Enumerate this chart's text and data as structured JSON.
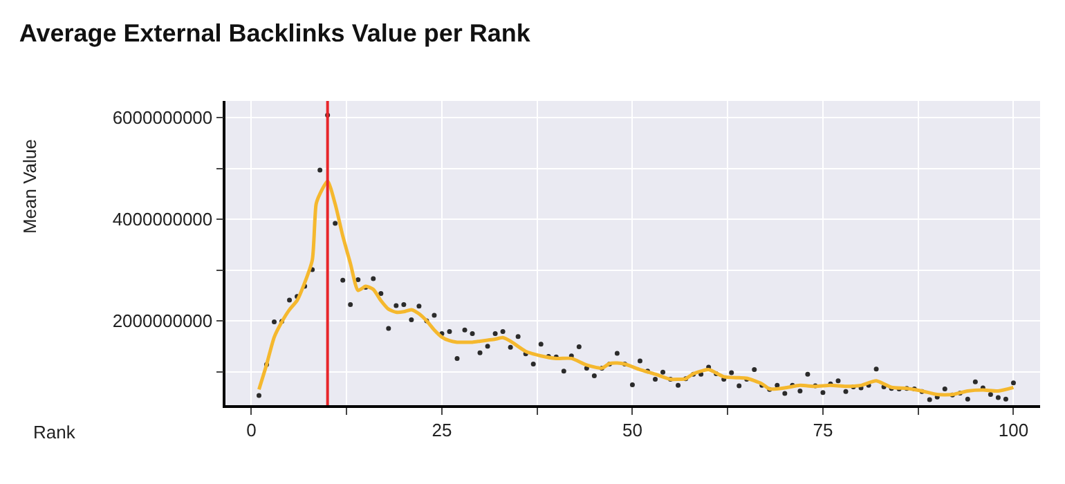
{
  "chart_data": {
    "type": "scatter",
    "title": "Average External Backlinks Value per Rank",
    "xlabel": "Rank",
    "ylabel": "Mean Value",
    "x": [
      1,
      2,
      3,
      4,
      5,
      6,
      7,
      8,
      9,
      10,
      11,
      12,
      13,
      14,
      15,
      16,
      17,
      18,
      19,
      20,
      21,
      22,
      23,
      24,
      25,
      26,
      27,
      28,
      29,
      30,
      31,
      32,
      33,
      34,
      35,
      36,
      37,
      38,
      39,
      40,
      41,
      42,
      43,
      44,
      45,
      46,
      47,
      48,
      49,
      50,
      51,
      52,
      53,
      54,
      55,
      56,
      57,
      58,
      59,
      60,
      61,
      62,
      63,
      64,
      65,
      66,
      67,
      68,
      69,
      70,
      71,
      72,
      73,
      74,
      75,
      76,
      77,
      78,
      79,
      80,
      81,
      82,
      83,
      84,
      85,
      86,
      87,
      88,
      89,
      90,
      91,
      92,
      93,
      94,
      95,
      96,
      97,
      98,
      99,
      100
    ],
    "series": [
      {
        "color": "#2b2b2b",
        "values": [
          530000000.0,
          1140000000.0,
          1980000000.0,
          1990000000.0,
          2410000000.0,
          2480000000.0,
          2680000000.0,
          3010000000.0,
          4970000000.0,
          6050000000.0,
          3920000000.0,
          2800000000.0,
          2320000000.0,
          2810000000.0,
          2660000000.0,
          2830000000.0,
          2540000000.0,
          1850000000.0,
          2300000000.0,
          2320000000.0,
          2020000000.0,
          2290000000.0,
          2000000000.0,
          2110000000.0,
          1750000000.0,
          1790000000.0,
          1260000000.0,
          1820000000.0,
          1750000000.0,
          1370000000.0,
          1500000000.0,
          1750000000.0,
          1790000000.0,
          1480000000.0,
          1690000000.0,
          1350000000.0,
          1150000000.0,
          1540000000.0,
          1300000000.0,
          1290000000.0,
          1010000000.0,
          1310000000.0,
          1490000000.0,
          1070000000.0,
          920000000.0,
          1070000000.0,
          1150000000.0,
          1360000000.0,
          1150000000.0,
          740000000.0,
          1210000000.0,
          1010000000.0,
          850000000.0,
          990000000.0,
          850000000.0,
          730000000.0,
          860000000.0,
          950000000.0,
          950000000.0,
          1090000000.0,
          960000000.0,
          850000000.0,
          980000000.0,
          720000000.0,
          850000000.0,
          1040000000.0,
          730000000.0,
          650000000.0,
          730000000.0,
          570000000.0,
          730000000.0,
          620000000.0,
          950000000.0,
          720000000.0,
          590000000.0,
          760000000.0,
          820000000.0,
          610000000.0,
          700000000.0,
          680000000.0,
          730000000.0,
          1050000000.0,
          700000000.0,
          670000000.0,
          660000000.0,
          670000000.0,
          660000000.0,
          610000000.0,
          450000000.0,
          500000000.0,
          660000000.0,
          540000000.0,
          580000000.0,
          460000000.0,
          800000000.0,
          680000000.0,
          550000000.0,
          490000000.0,
          460000000.0,
          780000000.0
        ]
      },
      {
        "type": "line",
        "line_style": "solid",
        "color": "#f5b82e",
        "x": [
          1,
          2,
          3,
          4,
          5,
          6,
          7,
          8,
          8.5,
          9,
          10,
          11,
          12,
          13,
          14,
          15,
          16,
          17,
          18,
          19,
          20,
          21,
          22,
          23,
          24,
          25,
          26,
          27,
          28,
          29,
          30,
          31,
          32,
          33,
          34,
          36,
          38,
          40,
          42,
          44,
          46,
          47,
          48,
          49,
          51,
          53,
          55,
          56,
          57,
          58,
          60,
          62,
          64,
          65,
          67,
          68,
          70,
          72,
          74,
          76,
          78,
          80,
          82,
          84,
          86,
          88,
          90,
          92,
          94,
          96,
          98,
          100
        ],
        "values": [
          650000000.0,
          1140000000.0,
          1680000000.0,
          1980000000.0,
          2220000000.0,
          2400000000.0,
          2750000000.0,
          3200000000.0,
          4300000000.0,
          4500000000.0,
          4750000000.0,
          4300000000.0,
          3670000000.0,
          3130000000.0,
          2600000000.0,
          2680000000.0,
          2620000000.0,
          2400000000.0,
          2230000000.0,
          2170000000.0,
          2180000000.0,
          2220000000.0,
          2140000000.0,
          2000000000.0,
          1820000000.0,
          1680000000.0,
          1610000000.0,
          1580000000.0,
          1580000000.0,
          1580000000.0,
          1600000000.0,
          1620000000.0,
          1640000000.0,
          1670000000.0,
          1600000000.0,
          1400000000.0,
          1310000000.0,
          1260000000.0,
          1260000000.0,
          1130000000.0,
          1070000000.0,
          1160000000.0,
          1170000000.0,
          1150000000.0,
          1040000000.0,
          950000000.0,
          850000000.0,
          850000000.0,
          860000000.0,
          960000000.0,
          1040000000.0,
          900000000.0,
          880000000.0,
          870000000.0,
          760000000.0,
          660000000.0,
          680000000.0,
          730000000.0,
          710000000.0,
          730000000.0,
          710000000.0,
          730000000.0,
          820000000.0,
          690000000.0,
          670000000.0,
          620000000.0,
          550000000.0,
          550000000.0,
          620000000.0,
          640000000.0,
          620000000.0,
          690000000.0
        ]
      }
    ],
    "ref_lines": [
      {
        "axis": "x",
        "value": 10,
        "color": "#e8262b",
        "line_style": "solid"
      }
    ],
    "xlim": [
      -3.4,
      103.5
    ],
    "ylim": [
      340000000.0,
      6330000000.0
    ],
    "xticks": [
      0,
      {
        "value": 12.5,
        "label": null
      },
      25,
      {
        "value": 37.5,
        "label": null
      },
      50,
      {
        "value": 62.5,
        "label": null
      },
      75,
      {
        "value": 87.5,
        "label": null
      },
      100
    ],
    "yticks": [
      {
        "value": 1000000000.0,
        "label": null
      },
      {
        "value": 2000000000.0,
        "label": "2000000000"
      },
      {
        "value": 3000000000.0,
        "label": null
      },
      {
        "value": 4000000000.0,
        "label": "4000000000"
      },
      {
        "value": 5000000000.0,
        "label": null
      },
      {
        "value": 6000000000.0,
        "label": "6000000000"
      }
    ],
    "grid": true
  }
}
